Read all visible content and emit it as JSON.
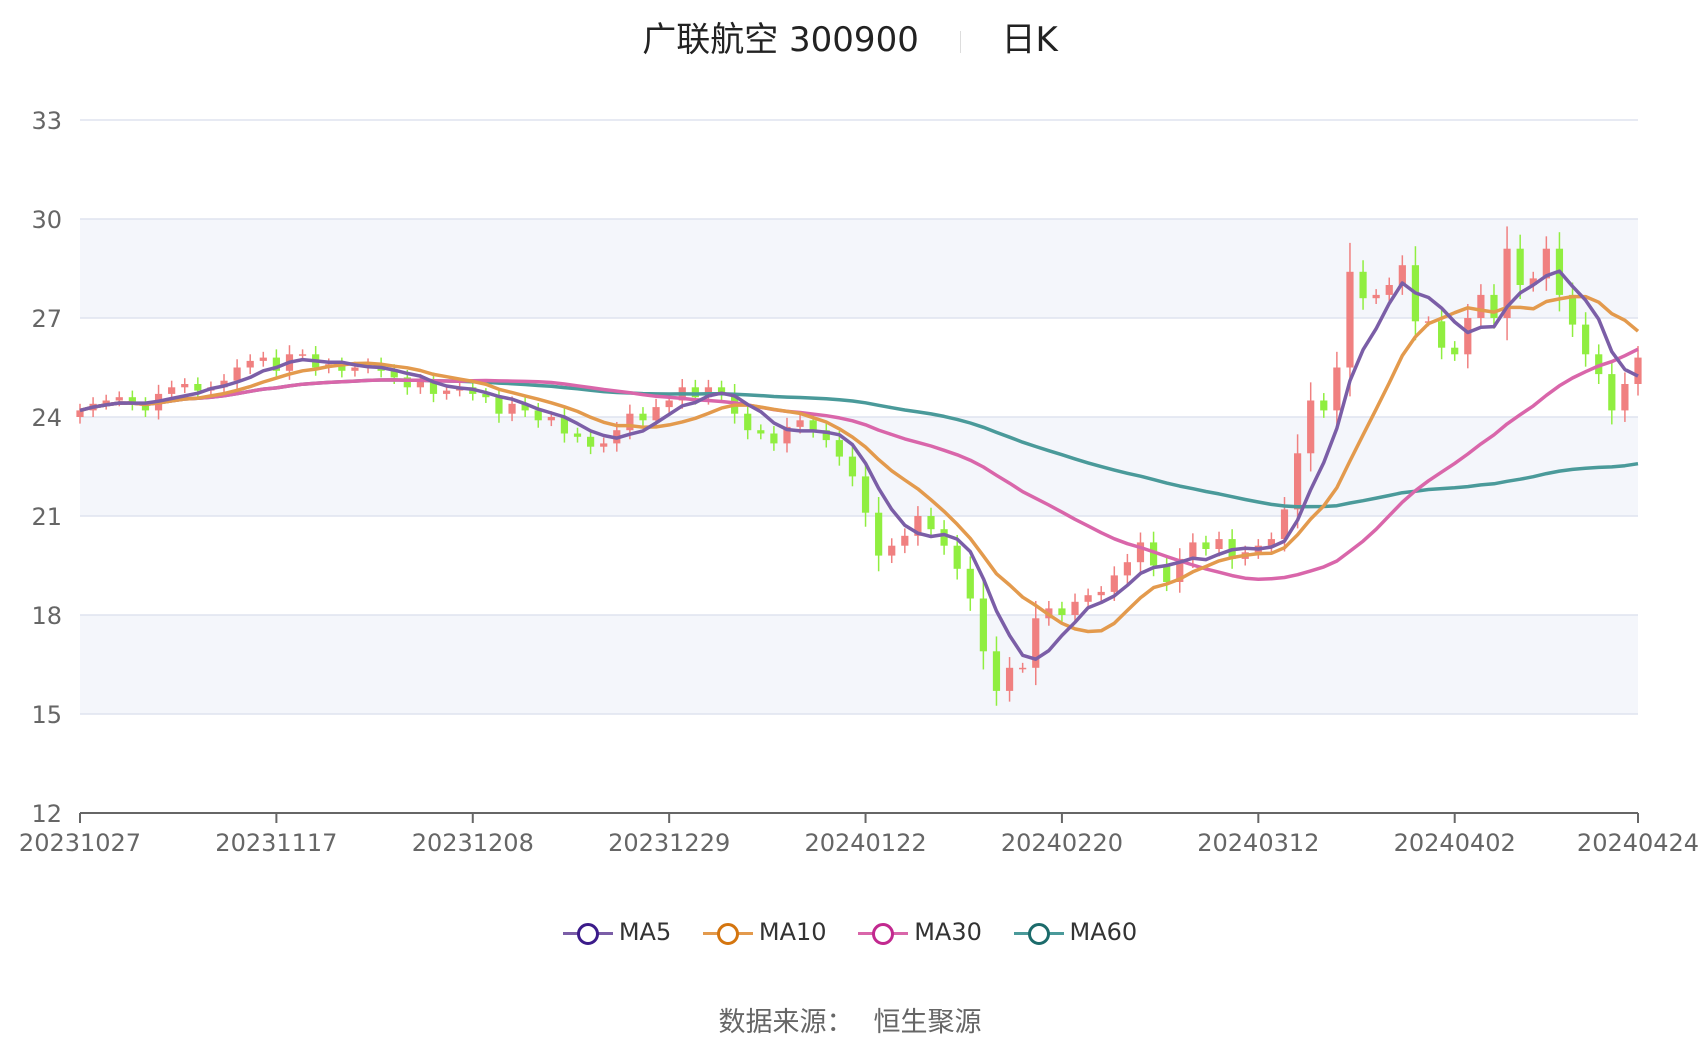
{
  "title": {
    "name": "广联航空 300900",
    "period": "日K"
  },
  "source": {
    "label": "数据来源：",
    "value": "恒生聚源"
  },
  "colors": {
    "up": "#f08080",
    "down": "#90ee40",
    "MA5": "#7b5ea7",
    "MA10": "#e39a4d",
    "MA30": "#d966aa",
    "MA60": "#4a9a9a",
    "MA5_marker": "#3b1b8a",
    "MA10_marker": "#d4750f",
    "MA30_marker": "#c2298f",
    "MA60_marker": "#1c6b6b",
    "band": "#f4f6fb",
    "grid": "#dfe4ef"
  },
  "chart_data": {
    "type": "candlestick",
    "ylim": [
      12,
      33
    ],
    "yticks": [
      12,
      15,
      18,
      21,
      24,
      27,
      30,
      33
    ],
    "xticks": [
      "20231027",
      "20231117",
      "20231208",
      "20231229",
      "20240122",
      "20240220",
      "20240312",
      "20240402",
      "20240424"
    ],
    "xtick_index": [
      0,
      15,
      30,
      45,
      60,
      75,
      90,
      105,
      119
    ],
    "n_days": 120,
    "legend": [
      "MA5",
      "MA10",
      "MA30",
      "MA60"
    ],
    "legend_position": "bottom",
    "close": [
      24.2,
      24.4,
      24.5,
      24.6,
      24.4,
      24.2,
      24.7,
      24.9,
      25.0,
      24.8,
      24.9,
      25.1,
      25.5,
      25.7,
      25.8,
      25.4,
      25.9,
      25.9,
      25.5,
      25.6,
      25.4,
      25.5,
      25.6,
      25.4,
      25.2,
      24.9,
      25.1,
      24.7,
      24.8,
      24.9,
      24.7,
      24.6,
      24.1,
      24.4,
      24.2,
      23.9,
      24.0,
      23.5,
      23.4,
      23.1,
      23.2,
      23.6,
      24.1,
      23.9,
      24.3,
      24.5,
      24.9,
      24.6,
      24.9,
      24.7,
      24.1,
      23.6,
      23.5,
      23.2,
      23.7,
      23.9,
      23.6,
      23.3,
      22.8,
      22.2,
      21.1,
      19.8,
      20.1,
      20.4,
      21.0,
      20.6,
      20.1,
      19.4,
      18.5,
      16.9,
      15.7,
      16.4,
      16.4,
      17.9,
      18.2,
      18.0,
      18.4,
      18.6,
      18.7,
      19.2,
      19.6,
      20.2,
      19.5,
      19.0,
      19.7,
      20.2,
      20.0,
      20.3,
      19.7,
      19.9,
      20.1,
      20.3,
      21.2,
      22.9,
      24.5,
      24.2,
      25.5,
      28.4,
      27.6,
      27.7,
      28.0,
      28.6,
      26.9,
      26.9,
      26.1,
      25.9,
      27.0,
      27.7,
      27.0,
      29.1,
      28.0,
      28.2,
      29.1,
      27.7,
      26.8,
      25.9,
      25.3,
      24.2,
      25.0,
      25.8
    ]
  }
}
